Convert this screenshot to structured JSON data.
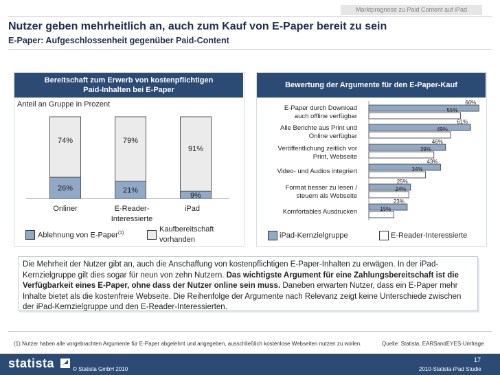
{
  "header": {
    "tag": "Marktprognose zu Paid Content auf iPad",
    "title": "Nutzer geben mehrheitlich an, auch zum Kauf von E-Paper bereit zu sein",
    "subtitle": "E-Paper: Aufgeschlossenheit gegenüber Paid-Content"
  },
  "colors": {
    "navy": "#2b4a74",
    "blue_bar": "#8fa9c7",
    "grey_bar": "#ebebeb"
  },
  "left_chart": {
    "heading_line1": "Bereitschaft zum Erwerb von kostenpflichtigen",
    "heading_line2": "Paid-Inhalten bei E-Paper",
    "ylabel": "Anteil an Gruppe in Prozent",
    "categories": [
      {
        "line1": "Onliner",
        "line2": ""
      },
      {
        "line1": "E-Reader-",
        "line2": "Interessierte"
      },
      {
        "line1": "iPad",
        "line2": ""
      }
    ],
    "legend_reject": "Ablehnung von E-Paper",
    "legend_reject_note": "(1)",
    "legend_accept_line1": "Kaufbereitschaft",
    "legend_accept_line2": "vorhanden"
  },
  "right_chart": {
    "heading": "Bewertung der Argumente für den E-Paper-Kauf",
    "legend_ipad": "iPad-Kernzielgruppe",
    "legend_ereader": "E-Reader-Interessierte"
  },
  "chart_data": [
    {
      "type": "bar",
      "stacked": true,
      "title": "Bereitschaft zum Erwerb von kostenpflichtigen Paid-Inhalten bei E-Paper",
      "ylabel": "Anteil an Gruppe in Prozent",
      "categories": [
        "Onliner",
        "E-Reader-Interessierte",
        "iPad"
      ],
      "series": [
        {
          "name": "Ablehnung von E-Paper",
          "values": [
            26,
            21,
            9
          ],
          "labels": [
            "26%",
            "21%",
            "9%"
          ]
        },
        {
          "name": "Kaufbereitschaft vorhanden",
          "values": [
            74,
            79,
            91
          ],
          "labels": [
            "74%",
            "79%",
            "91%"
          ]
        }
      ],
      "ylim": [
        0,
        100
      ]
    },
    {
      "type": "bar",
      "orientation": "horizontal",
      "title": "Bewertung der Argumente für den E-Paper-Kauf",
      "categories": [
        {
          "line1": "E-Paper durch Download",
          "line2": "auch offline verfügbar"
        },
        {
          "line1": "Alle Berichte aus Print und",
          "line2": "Online verfügbar"
        },
        {
          "line1": "Veröffentlichung zeitlich vor",
          "line2": "Print, Webseite"
        },
        {
          "line1": "Video- und Audios integriert",
          "line2": ""
        },
        {
          "line1": "Format besser zu lesen /",
          "line2": "steuern als Webseite"
        },
        {
          "line1": "Komfortables Ausdrucken",
          "line2": ""
        }
      ],
      "series": [
        {
          "name": "iPad-Kernzielgruppe",
          "values": [
            66,
            61,
            46,
            43,
            25,
            23
          ],
          "labels": [
            "66%",
            "61%",
            "46%",
            "43%",
            "25%",
            "23%"
          ]
        },
        {
          "name": "E-Reader-Interessierte",
          "values": [
            55,
            49,
            39,
            34,
            24,
            15
          ],
          "labels": [
            "55%",
            "49%",
            "39%",
            "34%",
            "24%",
            "15%"
          ]
        }
      ],
      "xlim": [
        0,
        70
      ]
    }
  ],
  "summary": {
    "intro": "Die Mehrheit der Nutzer gibt an, auch die Anschaffung von kostenpflichtigen E-Paper-Inhalten zu erwägen. In der iPad-Kernzielgruppe gilt dies sogar für neun von zehn Nutzern. ",
    "bold": "Das wichtigste Argument für eine Zahlungsbereitschaft ist die Verfügbarkeit eines E-Paper, ohne dass der Nutzer online sein muss.",
    "rest": " Daneben erwarten Nutzer, dass ein E-Paper mehr Inhalte bietet als die kostenfreie Webseite. Die Reihenfolge der Argumente nach Relevanz zeigt keine Unterschiede zwischen der iPad-Kernzielgruppe und den E-Reader-Interessierten."
  },
  "footnote": "(1) Nutzer haben alle vorgebrachten Argumente für E-Paper abgelehnt und angegeben, ausschließlich kostenlose Webseiten nutzen zu wollen.",
  "source": "Quelle: Statista, EARSandEYES-Umfrage",
  "footer": {
    "logo": "statista",
    "copyright": "© Statista GmbH 2010",
    "page": "17",
    "study": "2010-Statista-iPad Studie"
  }
}
